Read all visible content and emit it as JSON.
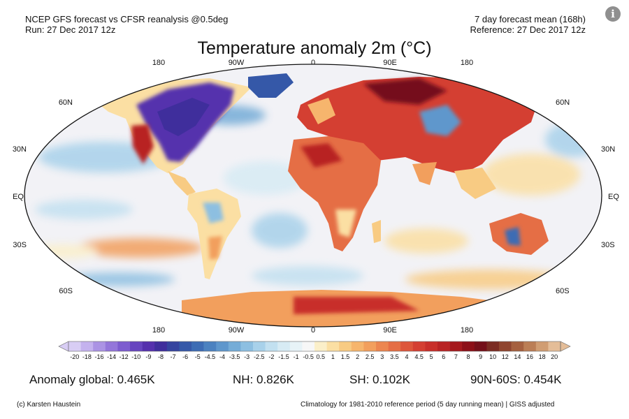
{
  "header": {
    "left_line1": "NCEP GFS forecast vs CFSR reanalysis @0.5deg",
    "left_line2": "Run: 27 Dec 2017 12z",
    "right_line1": "7 day forecast mean (168h)",
    "right_line2": "Reference: 27 Dec 2017 12z",
    "info_icon": "i"
  },
  "title": "Temperature anomaly 2m (°C)",
  "map": {
    "lon_labels": [
      "180",
      "90W",
      "0",
      "90E",
      "180"
    ],
    "lat_labels_left": [
      "60N",
      "30N",
      "EQ",
      "30S",
      "60S"
    ],
    "lat_labels_right": [
      "60N",
      "30N",
      "EQ",
      "30S",
      "60S"
    ],
    "ocean_color": "#f2f2f6"
  },
  "colorbar": {
    "ticks": [
      "-20",
      "-18",
      "-16",
      "-14",
      "-12",
      "-10",
      "-9",
      "-8",
      "-7",
      "-6",
      "-5",
      "-4.5",
      "-4",
      "-3.5",
      "-3",
      "-2.5",
      "-2",
      "-1.5",
      "-1",
      "-0.5",
      "0.5",
      "1",
      "1.5",
      "2",
      "2.5",
      "3",
      "3.5",
      "4",
      "4.5",
      "5",
      "6",
      "7",
      "8",
      "9",
      "10",
      "12",
      "14",
      "16",
      "18",
      "20"
    ],
    "colors": [
      "#d8cdf4",
      "#c4b2ee",
      "#ab93e4",
      "#9476da",
      "#7d5ccf",
      "#6745bf",
      "#5531ad",
      "#3f2e9c",
      "#35449f",
      "#3558a8",
      "#3d6cb4",
      "#4c82c0",
      "#5f97cc",
      "#75acd7",
      "#8dbfe1",
      "#a8d1ea",
      "#c2e0f0",
      "#d7ebf4",
      "#e7f3f7",
      "#f7f7f7",
      "#fbefc9",
      "#fbdfa3",
      "#f8cb83",
      "#f6b56d",
      "#f29f5d",
      "#ec8650",
      "#e56e45",
      "#dd563b",
      "#d43f32",
      "#c82f2a",
      "#b82324",
      "#a5191d",
      "#8c1018",
      "#74101a",
      "#7b2c23",
      "#8f452f",
      "#a5603f",
      "#bb7e55",
      "#d09d72",
      "#e4bd98"
    ]
  },
  "stats": {
    "global": "Anomaly global: 0.465K",
    "nh": "NH: 0.826K",
    "sh": "SH: 0.102K",
    "band": "90N-60S: 0.454K"
  },
  "footer": {
    "credit": "(c) Karsten Haustein",
    "note": "Climatology for 1981-2010 reference period (5 day running mean) | GISS adjusted"
  }
}
